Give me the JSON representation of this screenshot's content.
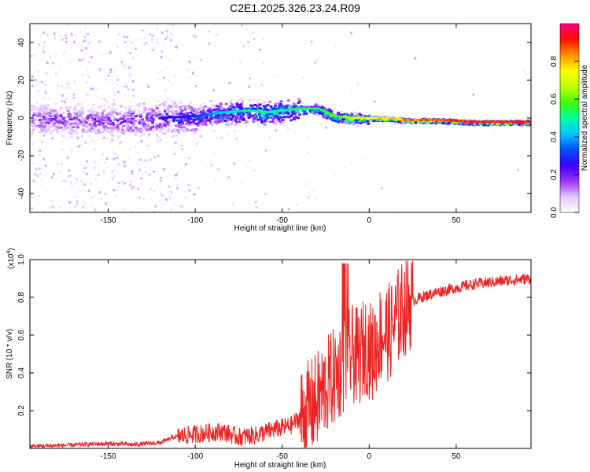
{
  "title": "C2E1.2025.326.23.24.R09",
  "chart_data": [
    {
      "type": "heatmap",
      "title": "C2E1.2025.326.23.24.R09",
      "xlabel": "Height of straight line (km)",
      "ylabel": "Frequency (Hz)",
      "xlim": [
        -195,
        93
      ],
      "ylim": [
        -50,
        50
      ],
      "xticks": [
        -150,
        -100,
        -50,
        0,
        50
      ],
      "yticks": [
        -40,
        -20,
        0,
        20,
        40
      ],
      "colorbar": {
        "label": "Normalized spectral amplitude",
        "range": [
          0,
          1
        ],
        "ticks": [
          0.0,
          0.2,
          0.4,
          0.6,
          0.8
        ],
        "colors": [
          "#ffffff",
          "#e0c8ff",
          "#9b30ff",
          "#3a00ff",
          "#0050ff",
          "#00c8ff",
          "#00ffa0",
          "#40ff00",
          "#c0ff00",
          "#ffff00",
          "#ff9000",
          "#ff1000",
          "#ff0080"
        ]
      },
      "ridge": {
        "x": [
          -195,
          -150,
          -100,
          -85,
          -70,
          -60,
          -50,
          -40,
          -30,
          -25,
          -20,
          -10,
          0,
          10,
          20,
          40,
          60,
          93
        ],
        "freq": [
          0,
          -1,
          1,
          3,
          4,
          3,
          4,
          5,
          5,
          3,
          1,
          0,
          0,
          0,
          -1,
          -1,
          -2,
          -2
        ],
        "amplitude": [
          0.18,
          0.2,
          0.3,
          0.45,
          0.5,
          0.5,
          0.5,
          0.55,
          0.55,
          0.6,
          0.6,
          0.7,
          0.75,
          0.8,
          0.85,
          0.9,
          0.95,
          0.95
        ]
      }
    },
    {
      "type": "line",
      "xlabel": "Height of straight line (km)",
      "ylabel": "SNR (10 * v/v)",
      "exponent_label": "(x10",
      "exponent": "4",
      "xlim": [
        -195,
        93
      ],
      "ylim": [
        0,
        1.0
      ],
      "xticks": [
        -150,
        -100,
        -50,
        0,
        50
      ],
      "yticks": [
        0.2,
        0.4,
        0.6,
        0.8,
        1.0
      ],
      "color": "#ee2222",
      "series": [
        {
          "name": "SNR",
          "x": [
            -195,
            -180,
            -165,
            -150,
            -135,
            -120,
            -112,
            -105,
            -95,
            -85,
            -75,
            -65,
            -55,
            -45,
            -38,
            -33,
            -28,
            -23,
            -18,
            -14,
            -10,
            -6,
            -2,
            2,
            6,
            12,
            18,
            24,
            30,
            40,
            50,
            60,
            70,
            80,
            93
          ],
          "y": [
            0.01,
            0.015,
            0.02,
            0.025,
            0.02,
            0.03,
            0.06,
            0.07,
            0.08,
            0.09,
            0.06,
            0.07,
            0.1,
            0.12,
            0.18,
            0.22,
            0.28,
            0.35,
            0.4,
            0.45,
            0.5,
            0.48,
            0.55,
            0.5,
            0.6,
            0.62,
            0.72,
            0.78,
            0.8,
            0.83,
            0.85,
            0.87,
            0.88,
            0.89,
            0.9
          ]
        }
      ]
    }
  ]
}
